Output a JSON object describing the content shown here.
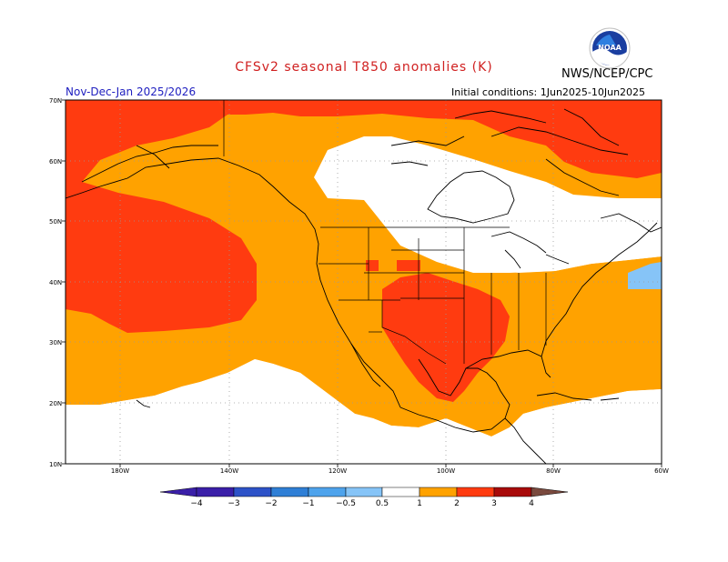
{
  "header": {
    "title": "CFSv2 seasonal T850 anomalies (K)",
    "agency": "NWS/NCEP/CPC",
    "period": "Nov-Dec-Jan 2025/2026",
    "initial_conditions": "Initial conditions: 1Jun2025-10Jun2025",
    "logo_text": "NOAA",
    "title_color": "#d02020",
    "period_color": "#2020c0"
  },
  "map": {
    "lat_labels": [
      "70N",
      "60N",
      "50N",
      "40N",
      "30N",
      "20N",
      "10N"
    ],
    "lon_labels": [
      "180W",
      "140W",
      "120W",
      "100W",
      "80W",
      "60W"
    ],
    "lon_range": [
      "170E",
      "60W"
    ],
    "lat_range": [
      "10N",
      "70N"
    ]
  },
  "colorbar": {
    "labels": [
      "−4",
      "−3",
      "−2",
      "−1",
      "−0.5",
      "0.5",
      "1",
      "2",
      "3",
      "4"
    ],
    "colors": [
      "#3a1fa8",
      "#2d52c8",
      "#2f7fd6",
      "#4ea3ec",
      "#86c4f7",
      "#ffffff",
      "#ffa200",
      "#ff3b10",
      "#a80a0a",
      "#c8a08c",
      "#8a4a3a"
    ],
    "arrow_left_color": "#3a1fa8",
    "arrow_right_color": "#7a4a3e"
  },
  "anomaly_colors": {
    "0.5-1": "#ffa200",
    "1-2": "#ff3b10",
    "-1--0.5": "#86c4f7"
  }
}
